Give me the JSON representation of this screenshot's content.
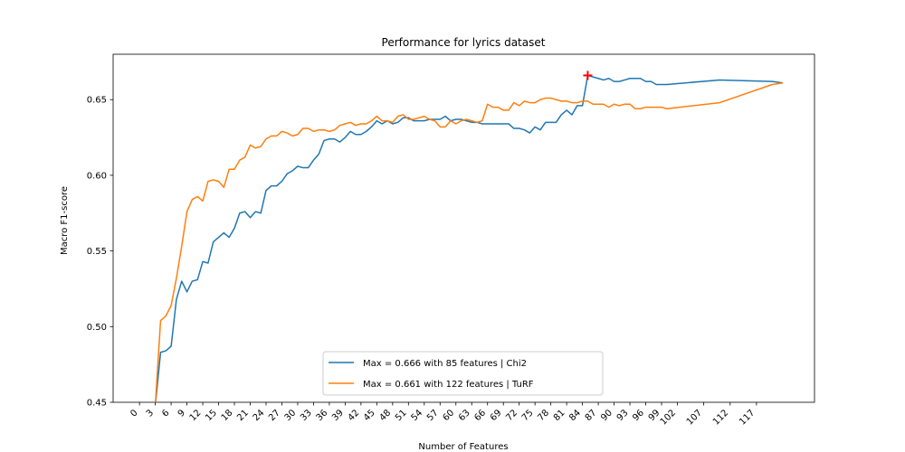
{
  "chart_data": {
    "type": "line",
    "title": "Performance for lyrics dataset",
    "xlabel": "Number of Features",
    "ylabel": "Macro F1-score",
    "xlim": [
      -5,
      128
    ],
    "ylim": [
      0.45,
      0.68
    ],
    "x_ticks": [
      0,
      3,
      6,
      9,
      12,
      15,
      18,
      21,
      24,
      27,
      30,
      33,
      36,
      39,
      42,
      45,
      48,
      51,
      54,
      57,
      60,
      63,
      66,
      69,
      72,
      75,
      78,
      81,
      84,
      87,
      90,
      93,
      96,
      99,
      102,
      107,
      112,
      117
    ],
    "y_ticks": [
      0.45,
      0.5,
      0.55,
      0.6,
      0.65
    ],
    "y_tick_labels": [
      "0.45",
      "0.50",
      "0.55",
      "0.60",
      "0.65"
    ],
    "grid": false,
    "legend_position": "lower center",
    "series": [
      {
        "name": "Max = 0.666 with 85 features | Chi2",
        "color": "#1f77b4",
        "x": [
          3,
          4,
          5,
          6,
          7,
          8,
          9,
          10,
          11,
          12,
          13,
          14,
          15,
          16,
          17,
          18,
          19,
          20,
          21,
          22,
          23,
          24,
          25,
          26,
          27,
          28,
          29,
          30,
          31,
          32,
          33,
          34,
          35,
          36,
          37,
          38,
          39,
          40,
          41,
          42,
          43,
          44,
          45,
          46,
          47,
          48,
          49,
          50,
          51,
          52,
          53,
          54,
          55,
          56,
          57,
          58,
          59,
          60,
          61,
          62,
          63,
          64,
          65,
          66,
          67,
          68,
          69,
          70,
          71,
          72,
          73,
          74,
          75,
          76,
          77,
          78,
          79,
          80,
          81,
          82,
          83,
          84,
          85,
          86,
          87,
          88,
          89,
          90,
          91,
          92,
          93,
          94,
          95,
          96,
          97,
          98,
          99,
          100,
          110,
          120,
          122
        ],
        "y": [
          0.448,
          0.483,
          0.484,
          0.487,
          0.518,
          0.53,
          0.523,
          0.53,
          0.531,
          0.543,
          0.542,
          0.556,
          0.559,
          0.562,
          0.559,
          0.565,
          0.575,
          0.576,
          0.572,
          0.576,
          0.575,
          0.59,
          0.593,
          0.593,
          0.596,
          0.601,
          0.603,
          0.606,
          0.605,
          0.605,
          0.61,
          0.614,
          0.623,
          0.624,
          0.624,
          0.622,
          0.625,
          0.629,
          0.627,
          0.627,
          0.629,
          0.632,
          0.636,
          0.634,
          0.636,
          0.634,
          0.635,
          0.638,
          0.638,
          0.636,
          0.636,
          0.636,
          0.637,
          0.637,
          0.637,
          0.639,
          0.636,
          0.637,
          0.637,
          0.636,
          0.635,
          0.635,
          0.634,
          0.634,
          0.634,
          0.634,
          0.634,
          0.634,
          0.631,
          0.631,
          0.63,
          0.628,
          0.632,
          0.63,
          0.635,
          0.635,
          0.635,
          0.64,
          0.643,
          0.64,
          0.646,
          0.646,
          0.666,
          0.665,
          0.664,
          0.663,
          0.664,
          0.662,
          0.662,
          0.663,
          0.664,
          0.664,
          0.664,
          0.662,
          0.662,
          0.66,
          0.66,
          0.66,
          0.663,
          0.662,
          0.661
        ]
      },
      {
        "name": "Max = 0.661 with 122 features | TuRF",
        "color": "#ff7f0e",
        "x": [
          3,
          4,
          5,
          6,
          7,
          8,
          9,
          10,
          11,
          12,
          13,
          14,
          15,
          16,
          17,
          18,
          19,
          20,
          21,
          22,
          23,
          24,
          25,
          26,
          27,
          28,
          29,
          30,
          31,
          32,
          33,
          34,
          35,
          36,
          37,
          38,
          39,
          40,
          41,
          42,
          43,
          44,
          45,
          46,
          47,
          48,
          49,
          50,
          51,
          52,
          53,
          54,
          55,
          56,
          57,
          58,
          59,
          60,
          61,
          62,
          63,
          64,
          65,
          66,
          67,
          68,
          69,
          70,
          71,
          72,
          73,
          74,
          75,
          76,
          77,
          78,
          79,
          80,
          81,
          82,
          83,
          84,
          85,
          86,
          87,
          88,
          89,
          90,
          91,
          92,
          93,
          94,
          95,
          96,
          97,
          98,
          99,
          100,
          110,
          120,
          122
        ],
        "y": [
          0.448,
          0.504,
          0.507,
          0.514,
          0.532,
          0.553,
          0.576,
          0.584,
          0.586,
          0.583,
          0.596,
          0.597,
          0.596,
          0.592,
          0.604,
          0.604,
          0.61,
          0.612,
          0.62,
          0.618,
          0.619,
          0.624,
          0.626,
          0.626,
          0.629,
          0.628,
          0.626,
          0.627,
          0.631,
          0.631,
          0.629,
          0.63,
          0.63,
          0.629,
          0.63,
          0.633,
          0.634,
          0.635,
          0.633,
          0.634,
          0.634,
          0.636,
          0.639,
          0.636,
          0.636,
          0.635,
          0.639,
          0.64,
          0.637,
          0.637,
          0.638,
          0.639,
          0.637,
          0.636,
          0.632,
          0.632,
          0.636,
          0.634,
          0.636,
          0.637,
          0.636,
          0.635,
          0.636,
          0.647,
          0.645,
          0.645,
          0.643,
          0.643,
          0.648,
          0.646,
          0.649,
          0.648,
          0.648,
          0.65,
          0.651,
          0.651,
          0.65,
          0.649,
          0.649,
          0.648,
          0.648,
          0.649,
          0.649,
          0.647,
          0.647,
          0.647,
          0.645,
          0.647,
          0.646,
          0.647,
          0.647,
          0.644,
          0.644,
          0.645,
          0.645,
          0.645,
          0.645,
          0.644,
          0.648,
          0.66,
          0.661
        ]
      }
    ],
    "annotations": [
      {
        "type": "marker",
        "marker": "plus",
        "x": 85,
        "y": 0.666,
        "color": "#ff0000"
      }
    ]
  }
}
